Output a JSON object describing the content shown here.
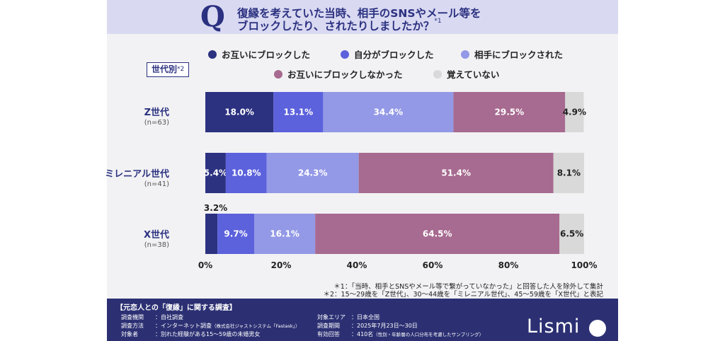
{
  "header": {
    "q_mark": "Q",
    "title_line1": "復縁を考えていた当時、相手のSNSやメール等を",
    "title_line2": "ブロックしたり、されたりしましたか？",
    "title_note": "*1"
  },
  "generation_box": {
    "label": "世代別",
    "note": "*2"
  },
  "legend": [
    {
      "label": "お互いにブロックした",
      "color": "#2c3280"
    },
    {
      "label": "自分がブロックした",
      "color": "#5c62dc"
    },
    {
      "label": "相手にブロックされた",
      "color": "#9399e6"
    },
    {
      "label": "お互いにブロックしなかった",
      "color": "#a76a90"
    },
    {
      "label": "覚えていない",
      "color": "#d9d9d9"
    }
  ],
  "chart_data": {
    "type": "bar",
    "orientation": "horizontal",
    "stacked": true,
    "categories": [
      "Z世代",
      "ミレニアル世代",
      "X世代"
    ],
    "sample_sizes": [
      "(n=63)",
      "(n=41)",
      "(n=38)"
    ],
    "series": [
      {
        "name": "お互いにブロックした",
        "values": [
          18.0,
          5.4,
          3.2
        ],
        "labels": [
          "18.0%",
          "5.4%",
          "3.2%"
        ]
      },
      {
        "name": "自分がブロックした",
        "values": [
          13.1,
          10.8,
          9.7
        ],
        "labels": [
          "13.1%",
          "10.8%",
          "9.7%"
        ]
      },
      {
        "name": "相手にブロックされた",
        "values": [
          34.4,
          24.3,
          16.1
        ],
        "labels": [
          "34.4%",
          "24.3%",
          "16.1%"
        ]
      },
      {
        "name": "お互いにブロックしなかった",
        "values": [
          29.5,
          51.4,
          64.5
        ],
        "labels": [
          "29.5%",
          "51.4%",
          "64.5%"
        ]
      },
      {
        "name": "覚えていない",
        "values": [
          4.9,
          8.1,
          6.5
        ],
        "labels": [
          "4.9%",
          "8.1%",
          "6.5%"
        ]
      }
    ],
    "xlim": [
      0,
      100
    ],
    "x_ticks": [
      "0%",
      "20%",
      "40%",
      "60%",
      "80%",
      "100%"
    ],
    "grid": false
  },
  "footnotes": [
    "＊1：「当時、相手とSNSやメール等で繋がっていなかった」と回答した人を除外して集計",
    "＊2：15〜29歳を「Z世代」、30〜44歳を「ミレニアル世代」、45〜59歳を「X世代」と表記"
  ],
  "footer": {
    "survey_title": "【元恋人との「復縁」に関する調査】",
    "left": [
      {
        "k": "調査機関",
        "v": "：自社調査",
        "small": ""
      },
      {
        "k": "調査方法",
        "v": "：インターネット調査",
        "small": "（株式会社ジャストシステム「Fastask」）"
      },
      {
        "k": "対象者",
        "v": "：別れた経験がある15〜59歳の未婚男女",
        "small": ""
      }
    ],
    "right": [
      {
        "k": "対象エリア",
        "v": "：日本全国",
        "small": ""
      },
      {
        "k": "調査期間",
        "v": "：2025年7月23日〜30日",
        "small": ""
      },
      {
        "k": "有効回答",
        "v": "：410名",
        "small": "（性別・年齢層の人口分布を考慮したサンプリング）"
      }
    ],
    "brand": "Lismi"
  }
}
